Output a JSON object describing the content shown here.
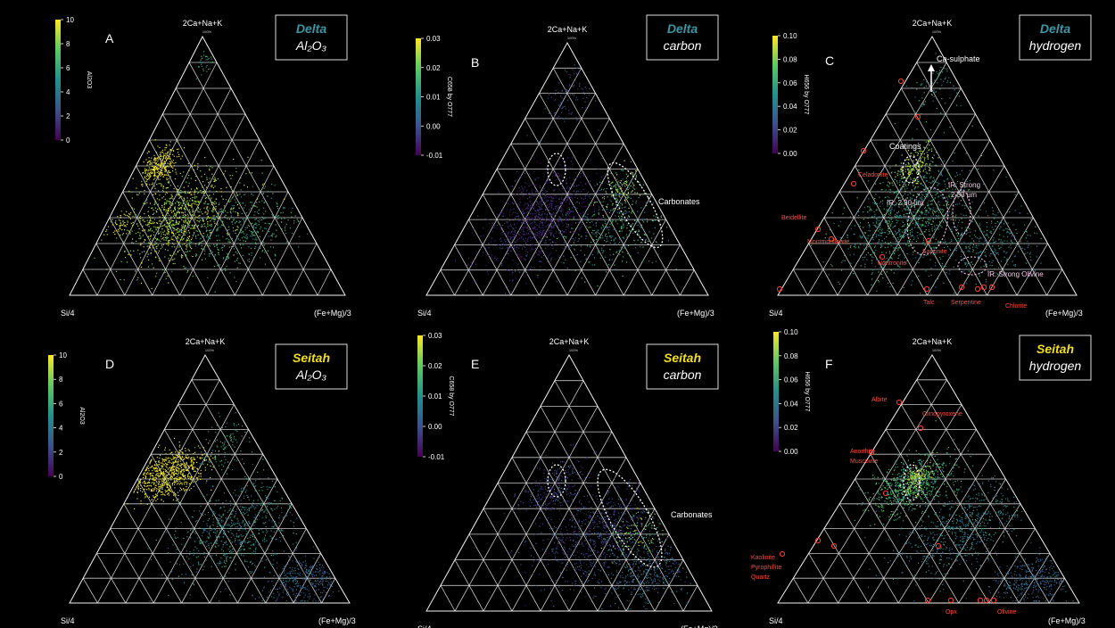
{
  "colors": {
    "delta": "#3a97a8",
    "seitah": "#f2df1b",
    "marker": "#ff3a2a"
  },
  "axes": {
    "apex": "2Ca+Na+K",
    "left": "Si/4",
    "right": "(Fe+Mg)/3",
    "apex_pct": "100%"
  },
  "chart_data": [
    {
      "id": "A",
      "type": "scatter",
      "site": "Delta",
      "variable": "Al₂O₃",
      "colorbar_label": "Al2O3",
      "colorbar_ticks": [
        "10",
        "8",
        "6",
        "4",
        "2",
        "0"
      ],
      "annotations": [],
      "minerals": []
    },
    {
      "id": "B",
      "type": "scatter",
      "site": "Delta",
      "variable": "carbon",
      "colorbar_label": "C658 by O777",
      "colorbar_ticks": [
        "0.03",
        "0.02",
        "0.01",
        "0.00",
        "-0.01"
      ],
      "annotations": [
        {
          "text": "Carbonates"
        }
      ],
      "minerals": []
    },
    {
      "id": "C",
      "type": "scatter",
      "site": "Delta",
      "variable": "hydrogen",
      "colorbar_label": "H656 by O777",
      "colorbar_ticks": [
        "0.10",
        "0.08",
        "0.06",
        "0.04",
        "0.02",
        "0.00"
      ],
      "annotations": [
        {
          "text": "Ca-sulphate"
        },
        {
          "text": "Coatings"
        },
        {
          "text": "IR: Strong"
        },
        {
          "text": "2.33 µm"
        },
        {
          "text": "IR: 2.30 µm"
        },
        {
          "text": "IR: Strong Olivine"
        }
      ],
      "minerals": [
        {
          "text": "Celadonite"
        },
        {
          "text": "Beidellite"
        },
        {
          "text": "Montmorillonite"
        },
        {
          "text": "Nontronite"
        },
        {
          "text": "Saponite"
        },
        {
          "text": "Talc"
        },
        {
          "text": "Serpentine"
        },
        {
          "text": "Chlorite"
        }
      ]
    },
    {
      "id": "D",
      "type": "scatter",
      "site": "Seitah",
      "variable": "Al₂O₃",
      "colorbar_label": "Al2O3",
      "colorbar_ticks": [
        "10",
        "8",
        "6",
        "4",
        "2",
        "0"
      ],
      "annotations": [],
      "minerals": []
    },
    {
      "id": "E",
      "type": "scatter",
      "site": "Seitah",
      "variable": "carbon",
      "colorbar_label": "C658 by O777",
      "colorbar_ticks": [
        "0.03",
        "0.02",
        "0.01",
        "0.00",
        "-0.01"
      ],
      "annotations": [
        {
          "text": "Carbonates"
        }
      ],
      "minerals": []
    },
    {
      "id": "F",
      "type": "scatter",
      "site": "Seitah",
      "variable": "hydrogen",
      "colorbar_label": "H656 by O777",
      "colorbar_ticks": [
        "0.10",
        "0.08",
        "0.06",
        "0.04",
        "0.02",
        "0.00"
      ],
      "annotations": [],
      "minerals": [
        {
          "text": "Albite"
        },
        {
          "text": "Clinopyroxene"
        },
        {
          "text": "Anorthite"
        },
        {
          "text": "Muscovite"
        },
        {
          "text": "Kaolinite"
        },
        {
          "text": "Pyrophillite"
        },
        {
          "text": "Quartz"
        },
        {
          "text": "Opx"
        },
        {
          "text": "Olivine"
        }
      ]
    }
  ]
}
